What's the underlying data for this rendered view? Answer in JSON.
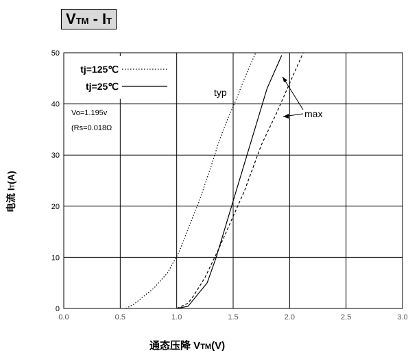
{
  "chart_data": {
    "type": "line",
    "title": {
      "main": "V",
      "main_sub": "TM",
      "sep": " - I",
      "sep_sub": "T"
    },
    "xlabel": {
      "pre": "通态压降 V",
      "sub": "TM",
      "post": "(V)"
    },
    "ylabel": {
      "pre": "电流 I",
      "sub": "T",
      "post": "(A)"
    },
    "xlim": [
      0,
      3.0
    ],
    "ylim": [
      0,
      50
    ],
    "x_ticks": [
      "0.0",
      "0.5",
      "1.0",
      "1.5",
      "2.0",
      "2.5",
      "3.0"
    ],
    "y_ticks": [
      "0",
      "10",
      "20",
      "30",
      "40",
      "50"
    ],
    "grid": true,
    "legend_position": "top-left",
    "series": [
      {
        "name": "tj=125℃",
        "style": "dotted",
        "points": [
          [
            0.55,
            0
          ],
          [
            0.62,
            0.8
          ],
          [
            0.8,
            4
          ],
          [
            0.92,
            7
          ],
          [
            1.02,
            11
          ],
          [
            1.1,
            15.5
          ],
          [
            1.2,
            21
          ],
          [
            1.3,
            27.5
          ],
          [
            1.38,
            33
          ],
          [
            1.45,
            37
          ],
          [
            1.53,
            41
          ],
          [
            1.6,
            45
          ],
          [
            1.66,
            48
          ],
          [
            1.7,
            50
          ]
        ]
      },
      {
        "name": "tj=25℃",
        "style": "solid",
        "points": [
          [
            1.0,
            0
          ],
          [
            1.1,
            0.4
          ],
          [
            1.27,
            5
          ],
          [
            1.35,
            10
          ],
          [
            1.5,
            21
          ],
          [
            1.65,
            32
          ],
          [
            1.8,
            43
          ],
          [
            1.93,
            49.5
          ]
        ]
      },
      {
        "name": "",
        "style": "dashed",
        "points": [
          [
            1.0,
            0
          ],
          [
            1.1,
            1
          ],
          [
            1.15,
            2.5
          ],
          [
            1.25,
            6
          ],
          [
            1.38,
            12
          ],
          [
            1.5,
            18
          ],
          [
            1.6,
            23
          ],
          [
            1.75,
            32
          ],
          [
            1.88,
            38
          ],
          [
            2.0,
            44
          ],
          [
            2.08,
            48
          ],
          [
            2.12,
            50
          ]
        ]
      }
    ],
    "annotations": {
      "params": [
        "Vo=1.195v",
        "(Rs=0.018Ω"
      ],
      "typ": "typ",
      "max": "max"
    }
  }
}
